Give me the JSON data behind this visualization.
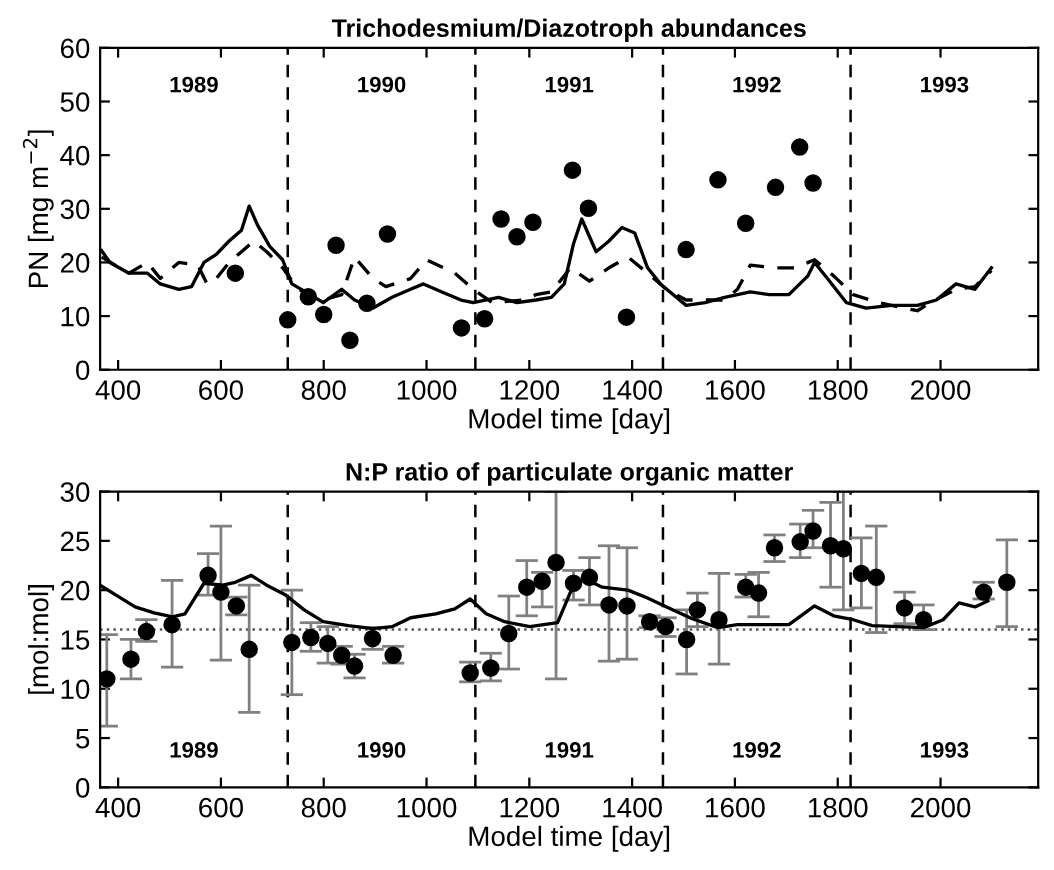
{
  "chart_data": [
    {
      "type": "line",
      "title": "Trichodesmium/Diazotroph abundances",
      "xlabel": "Model time [day]",
      "ylabel": "PN [mg m$^{−2}$]",
      "xlim": [
        365,
        2190
      ],
      "xticks": [
        400,
        600,
        800,
        1000,
        1200,
        1400,
        1600,
        1800,
        2000
      ],
      "ylim": [
        0,
        60
      ],
      "yticks": [
        0,
        10,
        20,
        30,
        40,
        50,
        60
      ],
      "grid": false,
      "legend": false,
      "series": [
        {
          "type": "line",
          "color": "#000000",
          "line_style": "solid",
          "marker": "none",
          "x": [
            368,
            384,
            421,
            457,
            482,
            518,
            543,
            567,
            591,
            616,
            640,
            655,
            671,
            695,
            720,
            738,
            774,
            799,
            835,
            860,
            896,
            933,
            969,
            994,
            1030,
            1067,
            1091,
            1140,
            1176,
            1213,
            1243,
            1268,
            1286,
            1302,
            1330,
            1355,
            1380,
            1405,
            1430,
            1455,
            1505,
            1542,
            1580,
            1630,
            1667,
            1705,
            1742,
            1755,
            1780,
            1817,
            1855,
            1905,
            1955,
            1992,
            2030,
            2067,
            2099
          ],
          "values": [
            22.2,
            20,
            18,
            18,
            16,
            15,
            15.5,
            20,
            21.5,
            24,
            26,
            30.5,
            27,
            23,
            20.5,
            16,
            14,
            12.5,
            15,
            13,
            11.5,
            13.5,
            15,
            16,
            14.5,
            13,
            12.5,
            13.5,
            12.5,
            13,
            13.5,
            16,
            23.5,
            28.1,
            22,
            24,
            26.5,
            25.5,
            19,
            16,
            12,
            12.5,
            13.5,
            14.5,
            14,
            14,
            17.5,
            20,
            17,
            12.5,
            11.5,
            12,
            12,
            13,
            16,
            15,
            19
          ]
        },
        {
          "type": "line",
          "color": "#000000",
          "line_style": "dashed",
          "marker": "none",
          "x": [
            368,
            421,
            457,
            482,
            518,
            555,
            573,
            591,
            616,
            640,
            664,
            689,
            720,
            750,
            799,
            835,
            860,
            896,
            921,
            969,
            1000,
            1055,
            1091,
            1128,
            1189,
            1213,
            1243,
            1280,
            1317,
            1355,
            1392,
            1430,
            1467,
            1505,
            1580,
            1605,
            1630,
            1680,
            1717,
            1755,
            1792,
            1830,
            1880,
            1930,
            1955,
            1980,
            2030,
            2067,
            2099
          ],
          "values": [
            21,
            18,
            20,
            17,
            20,
            19.5,
            16,
            17,
            20,
            22,
            24,
            22,
            19,
            15,
            13,
            14,
            21,
            17,
            15.5,
            17,
            20.5,
            18,
            15,
            12.5,
            13,
            14,
            14.5,
            19,
            16.5,
            19,
            21,
            18,
            15,
            13,
            13,
            15,
            19.5,
            19,
            19,
            20.5,
            17.5,
            14,
            12.5,
            11.5,
            11,
            12.5,
            15,
            15.5,
            18.5
          ]
        },
        {
          "type": "scatter",
          "color": "#000000",
          "marker": "circle",
          "x": [
            628,
            730,
            770,
            800,
            824,
            851,
            884,
            924,
            1068,
            1113,
            1145,
            1176,
            1207,
            1284,
            1315,
            1389,
            1505,
            1567,
            1621,
            1679,
            1726,
            1752
          ],
          "values": [
            18,
            9.3,
            13.6,
            10.3,
            23.2,
            5.5,
            12.4,
            25.3,
            7.8,
            9.5,
            28.1,
            24.8,
            27.5,
            37.2,
            30.1,
            9.8,
            22.4,
            35.4,
            27.3,
            34,
            41.5,
            34.8
          ]
        }
      ],
      "ref_lines": [
        {
          "axis": "x",
          "value": 730,
          "color": "#000000",
          "line_style": "dashed"
        },
        {
          "axis": "x",
          "value": 1095,
          "color": "#000000",
          "line_style": "dashed"
        },
        {
          "axis": "x",
          "value": 1460,
          "color": "#000000",
          "line_style": "dashed"
        },
        {
          "axis": "x",
          "value": 1825,
          "color": "#000000",
          "line_style": "dashed"
        }
      ],
      "annotations": [
        "1989",
        "1990",
        "1991",
        "1992",
        "1993"
      ]
    },
    {
      "type": "line",
      "title": "N:P ratio of particulate organic matter",
      "xlabel": "Model time [day]",
      "ylabel": "[mol:mol]",
      "xlim": [
        365,
        2190
      ],
      "xticks": [
        400,
        600,
        800,
        1000,
        1200,
        1400,
        1600,
        1800,
        2000
      ],
      "ylim": [
        0,
        30
      ],
      "yticks": [
        0,
        5,
        10,
        15,
        20,
        25,
        30
      ],
      "grid": false,
      "legend": false,
      "series": [
        {
          "type": "line",
          "color": "#000000",
          "line_style": "solid",
          "marker": "none",
          "x": [
            368,
            396,
            433,
            470,
            506,
            530,
            567,
            604,
            628,
            659,
            689,
            726,
            762,
            799,
            848,
            896,
            933,
            969,
            1018,
            1055,
            1085,
            1116,
            1152,
            1201,
            1255,
            1280,
            1305,
            1342,
            1392,
            1430,
            1467,
            1517,
            1567,
            1605,
            1655,
            1705,
            1755,
            1792,
            1830,
            1867,
            1917,
            1967,
            2005,
            2036,
            2067,
            2092
          ],
          "values": [
            20.4,
            19.5,
            18.3,
            17.7,
            17.3,
            17.6,
            20.7,
            20.5,
            20.8,
            21.5,
            20.5,
            19.5,
            18,
            16.8,
            16.4,
            16.1,
            16.3,
            17.2,
            17.6,
            18.1,
            19.1,
            17.6,
            16.8,
            16.3,
            16.7,
            19.8,
            21.2,
            20.3,
            20,
            19.2,
            18.3,
            17.1,
            16.2,
            16.5,
            16.5,
            16.5,
            18.4,
            17.4,
            17,
            16.4,
            16.3,
            16.2,
            17,
            18.7,
            18.3,
            18.9
          ]
        },
        {
          "type": "scatter",
          "color": "#000000",
          "marker": "circle",
          "x": [
            378,
            425,
            455,
            505,
            575,
            600,
            630,
            655,
            738,
            775,
            808,
            835,
            860,
            895,
            935,
            1085,
            1125,
            1160,
            1195,
            1225,
            1252,
            1286,
            1317,
            1355,
            1390,
            1434,
            1465,
            1506,
            1527,
            1569,
            1621,
            1646,
            1677,
            1727,
            1752,
            1786,
            1811,
            1846,
            1875,
            1930,
            1967,
            2084,
            2129
          ],
          "values": [
            11,
            13,
            15.8,
            16.5,
            21.5,
            19.8,
            18.4,
            14,
            14.7,
            15.2,
            14.6,
            13.4,
            12.3,
            15.1,
            13.4,
            11.6,
            12.1,
            15.6,
            20.3,
            20.9,
            22.8,
            20.7,
            21.3,
            18.5,
            18.4,
            16.8,
            16.3,
            15,
            18,
            17,
            20.3,
            19.7,
            24.3,
            24.9,
            26,
            24.5,
            24.2,
            21.7,
            21.3,
            18.2,
            17,
            19.8,
            20.8
          ],
          "errors": [
            [
              6.2,
              15.5
            ],
            [
              11,
              15
            ],
            [
              14.8,
              17
            ],
            [
              12.2,
              21
            ],
            [
              19.5,
              23.7
            ],
            [
              12.9,
              26.5
            ],
            [
              17.5,
              19.3
            ],
            [
              7.6,
              20.5
            ],
            [
              9.4,
              20
            ],
            [
              13.8,
              16.7
            ],
            [
              12.6,
              16.3
            ],
            [
              12.5,
              14.3
            ],
            [
              11.1,
              13.5
            ],
            [
              14,
              16.2
            ],
            [
              12.6,
              14.3
            ],
            [
              10.7,
              12.7
            ],
            [
              10.8,
              13.6
            ],
            [
              12,
              19.4
            ],
            [
              17.4,
              23
            ],
            [
              18.3,
              21.8
            ],
            [
              11,
              30
            ],
            [
              19,
              22
            ],
            [
              18.5,
              23.3
            ],
            [
              12.8,
              24.5
            ],
            [
              13,
              24.3
            ],
            [
              16.2,
              17.4
            ],
            [
              15.3,
              17.2
            ],
            [
              11.5,
              18
            ],
            [
              16.3,
              19.7
            ],
            [
              12.5,
              21.7
            ],
            [
              19.3,
              21.6
            ],
            [
              17.3,
              21.8
            ],
            [
              22.9,
              25.6
            ],
            [
              23.3,
              26.7
            ],
            [
              24.3,
              28.1
            ],
            [
              20.3,
              28.9
            ],
            [
              18,
              30
            ],
            [
              18.2,
              25.3
            ],
            [
              15.7,
              26.5
            ],
            [
              16.6,
              19.8
            ],
            [
              16,
              18.5
            ],
            [
              19.1,
              20.8
            ],
            [
              16.3,
              25.1
            ]
          ]
        }
      ],
      "ref_lines": [
        {
          "axis": "y",
          "value": 16,
          "color": "#555555",
          "line_style": "dotted"
        },
        {
          "axis": "x",
          "value": 730,
          "color": "#000000",
          "line_style": "dashed"
        },
        {
          "axis": "x",
          "value": 1095,
          "color": "#000000",
          "line_style": "dashed"
        },
        {
          "axis": "x",
          "value": 1460,
          "color": "#000000",
          "line_style": "dashed"
        },
        {
          "axis": "x",
          "value": 1825,
          "color": "#000000",
          "line_style": "dashed"
        }
      ],
      "annotations": [
        "1989",
        "1990",
        "1991",
        "1992",
        "1993"
      ]
    }
  ]
}
